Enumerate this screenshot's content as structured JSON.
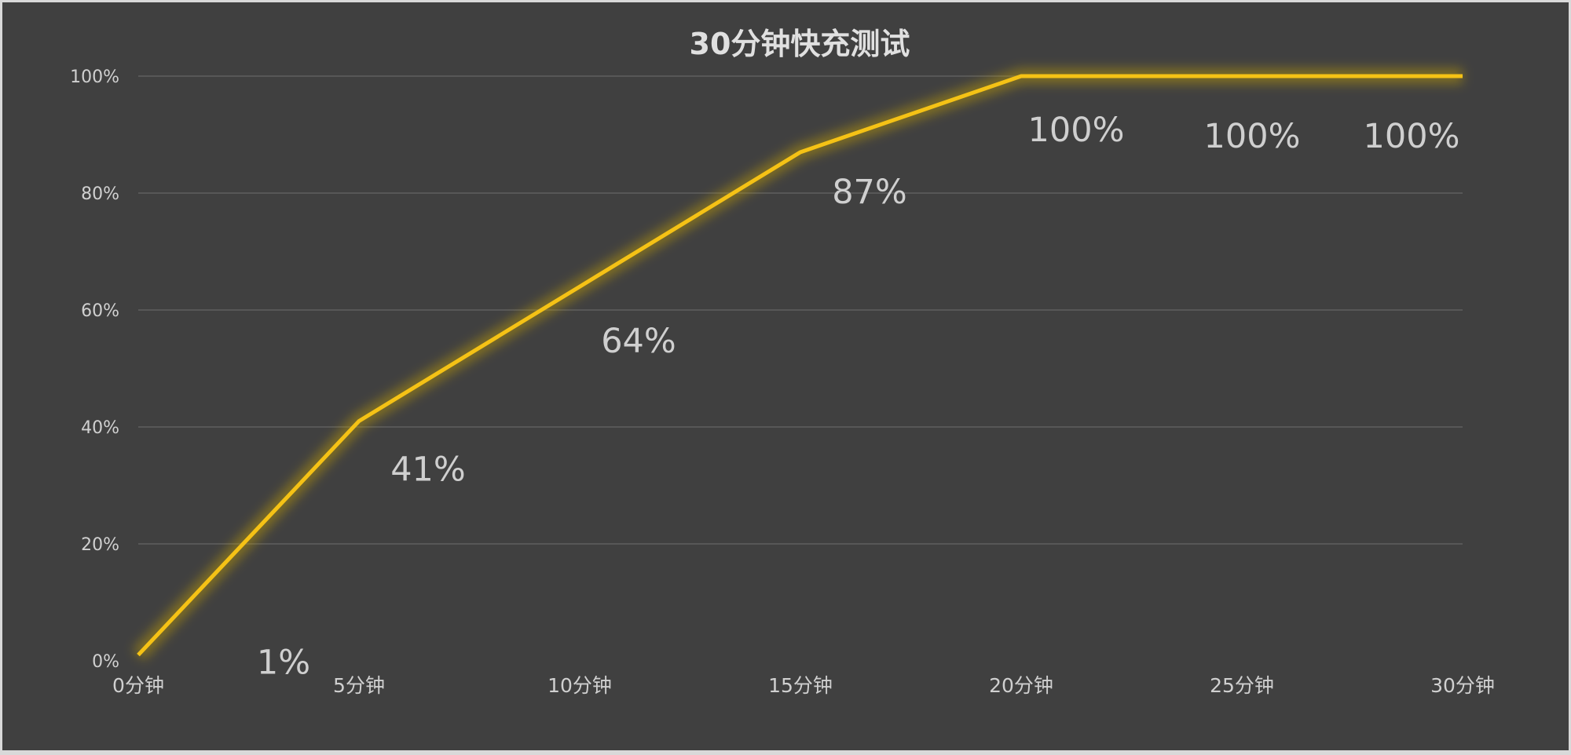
{
  "chart_data": {
    "type": "line",
    "title": "30分钟快充测试",
    "categories": [
      "0分钟",
      "5分钟",
      "10分钟",
      "15分钟",
      "20分钟",
      "25分钟",
      "30分钟"
    ],
    "series": [
      {
        "values": [
          1,
          41,
          64,
          87,
          100,
          100,
          100
        ],
        "color": "#f5c215"
      }
    ],
    "data_labels": [
      "1%",
      "41%",
      "64%",
      "87%",
      "100%",
      "100%",
      "100%"
    ],
    "y_ticks": [
      "0%",
      "20%",
      "40%",
      "60%",
      "80%",
      "100%"
    ],
    "ylim": [
      0,
      100
    ],
    "grid": true,
    "legend": "none",
    "background": "#404040"
  }
}
